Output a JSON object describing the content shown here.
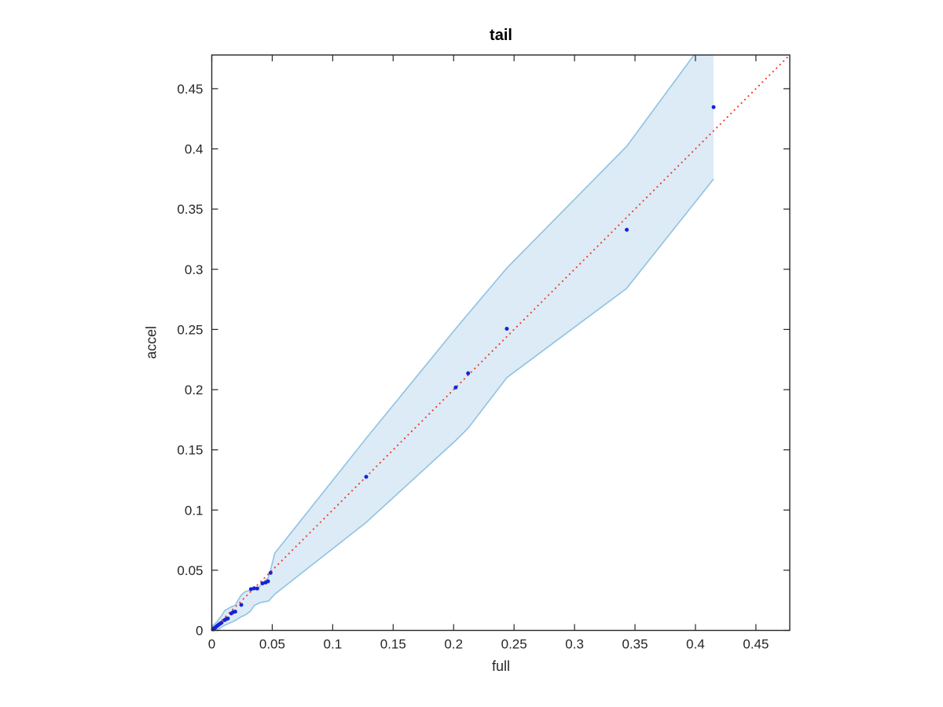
{
  "chart_data": {
    "type": "scatter",
    "title": "tail",
    "xlabel": "full",
    "ylabel": "accel",
    "xlim": [
      0,
      0.478
    ],
    "ylim": [
      0,
      0.478
    ],
    "grid": false,
    "xticks": [
      0,
      0.05,
      0.1,
      0.15,
      0.2,
      0.25,
      0.3,
      0.35,
      0.4,
      0.45
    ],
    "xtick_labels": [
      "0",
      "0.05",
      "0.1",
      "0.15",
      "0.2",
      "0.25",
      "0.3",
      "0.35",
      "0.4",
      "0.45"
    ],
    "yticks": [
      0,
      0.05,
      0.1,
      0.15,
      0.2,
      0.25,
      0.3,
      0.35,
      0.4,
      0.45
    ],
    "ytick_labels": [
      "0",
      "0.05",
      "0.1",
      "0.15",
      "0.2",
      "0.25",
      "0.3",
      "0.35",
      "0.4",
      "0.45"
    ],
    "colors": {
      "band_fill": "#dcebf6",
      "band_edge": "#90c2e2",
      "identity_line": "#f23b2e",
      "points": "#1623d8",
      "axis": "#262626",
      "tick_text": "#262626",
      "background": "#ffffff"
    },
    "series": [
      {
        "name": "confidence-band",
        "type": "band",
        "x_upper": [
          0,
          0.004,
          0.008,
          0.0107,
          0.0133,
          0.016,
          0.0194,
          0.0244,
          0.0276,
          0.0324,
          0.0376,
          0.0419,
          0.0465,
          0.0486,
          0.052,
          0.128,
          0.202,
          0.212,
          0.244,
          0.343,
          0.415
        ],
        "y_upper": [
          0.003,
          0.007,
          0.012,
          0.0165,
          0.018,
          0.0195,
          0.021,
          0.0295,
          0.0322,
          0.0335,
          0.0343,
          0.0395,
          0.0435,
          0.05,
          0.064,
          0.16,
          0.251,
          0.263,
          0.301,
          0.402,
          0.5
        ],
        "x_lower": [
          0,
          0.005,
          0.01,
          0.0146,
          0.019,
          0.0244,
          0.028,
          0.032,
          0.0352,
          0.04,
          0.0471,
          0.052,
          0.128,
          0.202,
          0.212,
          0.244,
          0.343,
          0.415
        ],
        "y_lower": [
          0,
          0.0005,
          0.004,
          0.006,
          0.008,
          0.0114,
          0.013,
          0.016,
          0.0208,
          0.023,
          0.0245,
          0.03,
          0.09,
          0.158,
          0.168,
          0.21,
          0.284,
          0.375
        ]
      },
      {
        "name": "identity-line",
        "type": "line",
        "style": "dotted",
        "x": [
          0,
          0.4787
        ],
        "y": [
          0,
          0.4787
        ]
      },
      {
        "name": "data-points",
        "type": "scatter",
        "points": [
          [
            0.001,
            0.0008
          ],
          [
            0.0015,
            0.0013
          ],
          [
            0.002,
            0.0018
          ],
          [
            0.0028,
            0.0022
          ],
          [
            0.0035,
            0.003
          ],
          [
            0.0042,
            0.0035
          ],
          [
            0.005,
            0.0042
          ],
          [
            0.006,
            0.005
          ],
          [
            0.007,
            0.0057
          ],
          [
            0.0081,
            0.0064
          ],
          [
            0.0107,
            0.0086
          ],
          [
            0.012,
            0.0095
          ],
          [
            0.0133,
            0.0099
          ],
          [
            0.0161,
            0.0141
          ],
          [
            0.0177,
            0.0152
          ],
          [
            0.0194,
            0.0156
          ],
          [
            0.0244,
            0.0212
          ],
          [
            0.0324,
            0.0343
          ],
          [
            0.035,
            0.035
          ],
          [
            0.0376,
            0.0348
          ],
          [
            0.0419,
            0.0391
          ],
          [
            0.0445,
            0.0397
          ],
          [
            0.0465,
            0.0408
          ],
          [
            0.0486,
            0.0478
          ],
          [
            0.1277,
            0.1276
          ],
          [
            0.2017,
            0.2018
          ],
          [
            0.212,
            0.2136
          ],
          [
            0.244,
            0.2506
          ],
          [
            0.3432,
            0.3328
          ],
          [
            0.415,
            0.4347
          ]
        ]
      }
    ]
  }
}
